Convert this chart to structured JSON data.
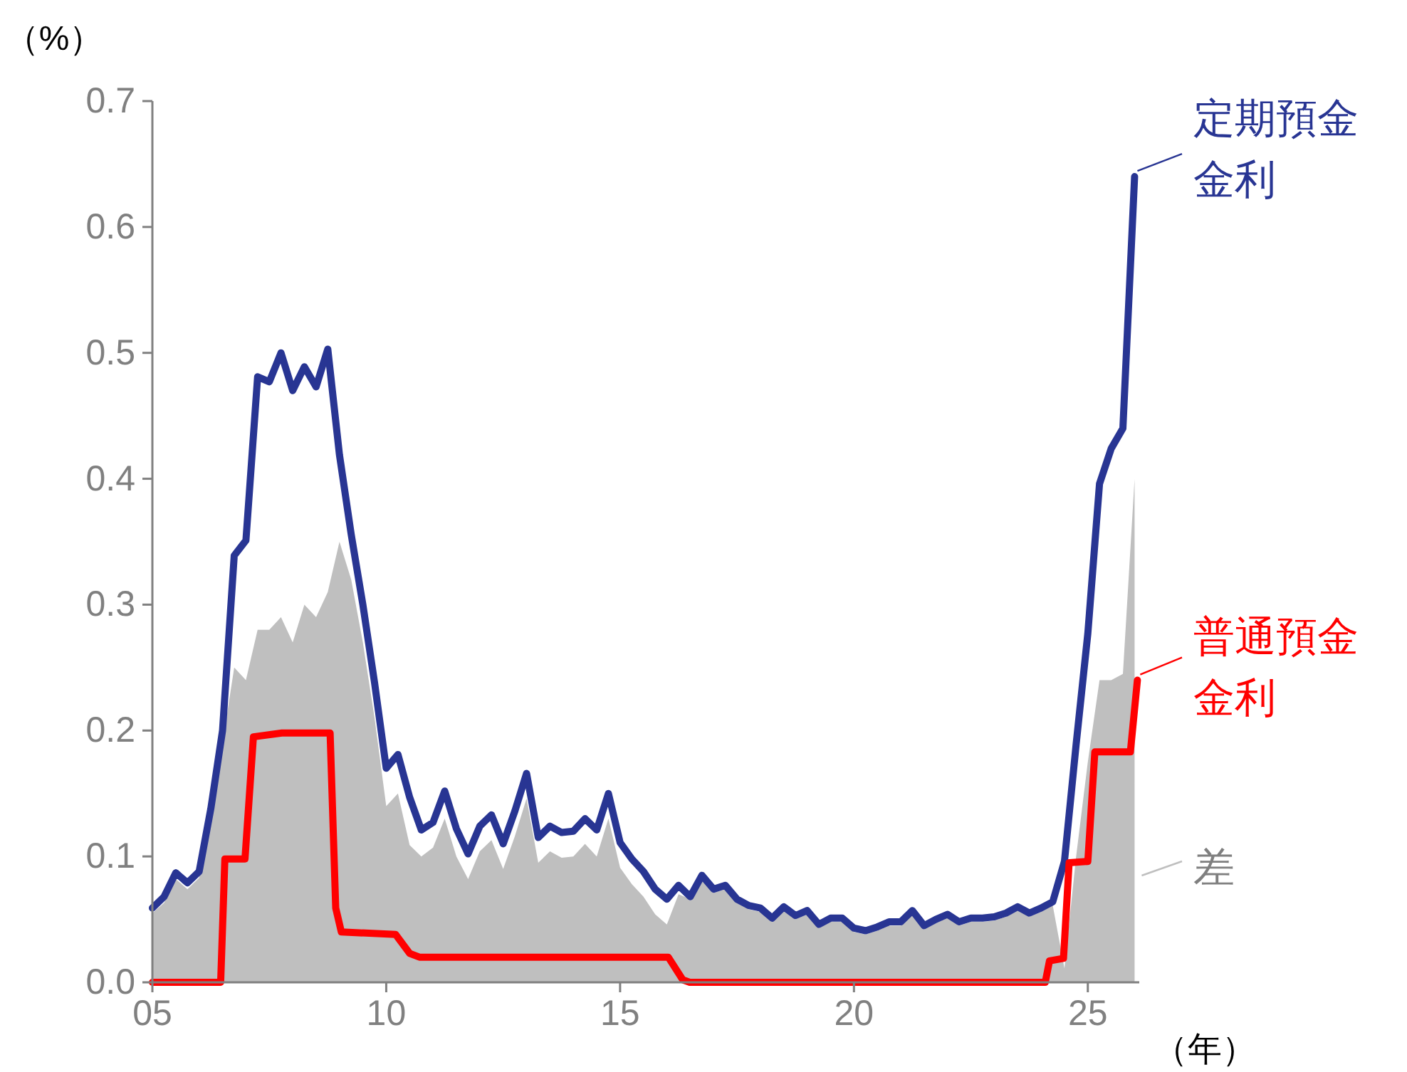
{
  "chart_data": {
    "type": "line",
    "xlabel": "（年）",
    "ylabel": "（%）",
    "legend": "right",
    "xlim": [
      2005,
      2026.1
    ],
    "ylim": [
      0,
      0.7
    ],
    "xticks": [
      {
        "value": 2005,
        "label": "05"
      },
      {
        "value": 2010,
        "label": "10"
      },
      {
        "value": 2015,
        "label": "15"
      },
      {
        "value": 2020,
        "label": "20"
      },
      {
        "value": 2025,
        "label": "25"
      }
    ],
    "yticks": [
      {
        "value": 0,
        "label": "0.0"
      },
      {
        "value": 0.1,
        "label": "0.1"
      },
      {
        "value": 0.2,
        "label": "0.2"
      },
      {
        "value": 0.3,
        "label": "0.3"
      },
      {
        "value": 0.4,
        "label": "0.4"
      },
      {
        "value": 0.5,
        "label": "0.5"
      },
      {
        "value": 0.6,
        "label": "0.6"
      },
      {
        "value": 0.7,
        "label": "0.7"
      }
    ],
    "x": [
      2005,
      2005.25,
      2005.5,
      2005.75,
      2006,
      2006.25,
      2006.5,
      2006.75,
      2007,
      2007.25,
      2007.5,
      2007.75,
      2008,
      2008.25,
      2008.5,
      2008.75,
      2009,
      2009.25,
      2009.5,
      2009.75,
      2010,
      2010.25,
      2010.5,
      2010.75,
      2011,
      2011.25,
      2011.5,
      2011.75,
      2012,
      2012.25,
      2012.5,
      2012.75,
      2013,
      2013.25,
      2013.5,
      2013.75,
      2014,
      2014.25,
      2014.5,
      2014.75,
      2015,
      2015.25,
      2015.5,
      2015.75,
      2016,
      2016.25,
      2016.5,
      2016.75,
      2017,
      2017.25,
      2017.5,
      2017.75,
      2018,
      2018.25,
      2018.5,
      2018.75,
      2019,
      2019.25,
      2019.5,
      2019.75,
      2020,
      2020.25,
      2020.5,
      2020.75,
      2021,
      2021.25,
      2021.5,
      2021.75,
      2022,
      2022.25,
      2022.5,
      2022.75,
      2023,
      2023.25,
      2023.5,
      2023.75,
      2024,
      2024.25,
      2024.5,
      2024.75,
      2025,
      2025.25,
      2025.5,
      2025.75,
      2026
    ],
    "series": [
      {
        "name": "差",
        "type": "area",
        "color": "#bfbfbf",
        "values": [
          0.055,
          0.063,
          0.082,
          0.074,
          0.083,
          0.13,
          0.19,
          0.25,
          0.24,
          0.28,
          0.28,
          0.29,
          0.27,
          0.3,
          0.29,
          0.31,
          0.35,
          0.32,
          0.27,
          0.21,
          0.14,
          0.15,
          0.109,
          0.1,
          0.107,
          0.13,
          0.1,
          0.082,
          0.104,
          0.113,
          0.09,
          0.116,
          0.146,
          0.095,
          0.104,
          0.099,
          0.1,
          0.11,
          0.1,
          0.13,
          0.091,
          0.078,
          0.068,
          0.054,
          0.046,
          0.07,
          0.066,
          0.082,
          0.071,
          0.074,
          0.063,
          0.058,
          0.056,
          0.048,
          0.057,
          0.05,
          0.054,
          0.043,
          0.048,
          0.048,
          0.04,
          0.038,
          0.041,
          0.045,
          0.045,
          0.054,
          0.042,
          0.047,
          0.051,
          0.045,
          0.048,
          0.048,
          0.049,
          0.052,
          0.057,
          0.052,
          0.056,
          0.061,
          0.011,
          0.1,
          0.175,
          0.24,
          0.24,
          0.245,
          0.4
        ]
      },
      {
        "name": "定期預金金利",
        "color": "#283593",
        "values": [
          0.059,
          0.068,
          0.087,
          0.079,
          0.088,
          0.138,
          0.2,
          0.339,
          0.351,
          0.481,
          0.477,
          0.5,
          0.47,
          0.489,
          0.473,
          0.503,
          0.419,
          0.356,
          0.3,
          0.238,
          0.17,
          0.181,
          0.147,
          0.121,
          0.127,
          0.152,
          0.122,
          0.102,
          0.124,
          0.133,
          0.11,
          0.136,
          0.166,
          0.115,
          0.124,
          0.119,
          0.12,
          0.13,
          0.121,
          0.15,
          0.111,
          0.098,
          0.088,
          0.074,
          0.066,
          0.077,
          0.068,
          0.085,
          0.074,
          0.077,
          0.066,
          0.061,
          0.059,
          0.051,
          0.06,
          0.053,
          0.057,
          0.046,
          0.051,
          0.051,
          0.043,
          0.041,
          0.044,
          0.048,
          0.048,
          0.057,
          0.045,
          0.05,
          0.054,
          0.048,
          0.051,
          0.051,
          0.052,
          0.055,
          0.06,
          0.055,
          0.059,
          0.064,
          0.096,
          0.189,
          0.277,
          0.396,
          0.424,
          0.44,
          0.64
        ]
      },
      {
        "name": "普通預金金利",
        "color": "#ff0000",
        "x": [
          2005,
          2006.46,
          2006.55,
          2006.98,
          2007.16,
          2007.77,
          2008.8,
          2008.92,
          2009.04,
          2010.2,
          2010.5,
          2010.71,
          2016.03,
          2016.34,
          2016.49,
          2024.09,
          2024.18,
          2024.48,
          2024.6,
          2025,
          2025.15,
          2025.91,
          2026.06
        ],
        "values": [
          0,
          0,
          0.098,
          0.098,
          0.195,
          0.198,
          0.198,
          0.059,
          0.04,
          0.038,
          0.023,
          0.02,
          0.02,
          0.002,
          0,
          0,
          0.017,
          0.019,
          0.095,
          0.096,
          0.183,
          0.183,
          0.24
        ]
      }
    ]
  }
}
